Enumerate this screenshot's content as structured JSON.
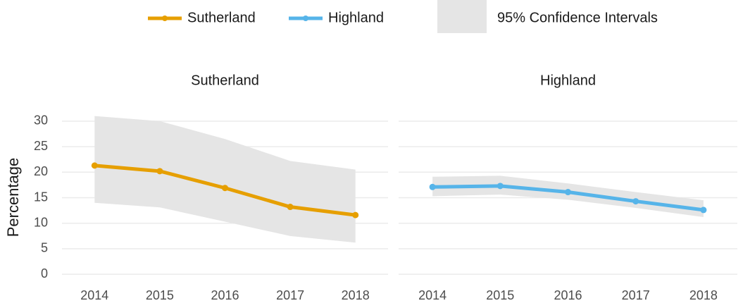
{
  "chart_data": {
    "type": "line",
    "y_label": "Percentage",
    "ci_label": "95% Confidence Intervals",
    "ci_color": "#e5e5e5",
    "x": [
      2014,
      2015,
      2016,
      2017,
      2018
    ],
    "xlim": [
      2013.5,
      2018.5
    ],
    "xticks": [
      2014,
      2015,
      2016,
      2017,
      2018
    ],
    "ylim": [
      -1.5,
      31.5
    ],
    "yticks": [
      0,
      5,
      10,
      15,
      20,
      25,
      30
    ],
    "grid": true,
    "legend": "top",
    "series": [
      {
        "name": "Sutherland",
        "color": "#e69f00",
        "values": [
          21.3,
          20.2,
          16.9,
          13.2,
          11.6
        ],
        "lower": [
          14.0,
          13.1,
          10.3,
          7.5,
          6.2
        ],
        "upper": [
          31.0,
          30.0,
          26.5,
          22.2,
          20.5
        ]
      },
      {
        "name": "Highland",
        "color": "#56b4e9",
        "values": [
          17.1,
          17.3,
          16.1,
          14.3,
          12.6
        ],
        "lower": [
          15.3,
          15.6,
          14.6,
          13.0,
          11.2
        ],
        "upper": [
          19.1,
          19.3,
          17.8,
          16.1,
          14.5
        ]
      }
    ]
  }
}
